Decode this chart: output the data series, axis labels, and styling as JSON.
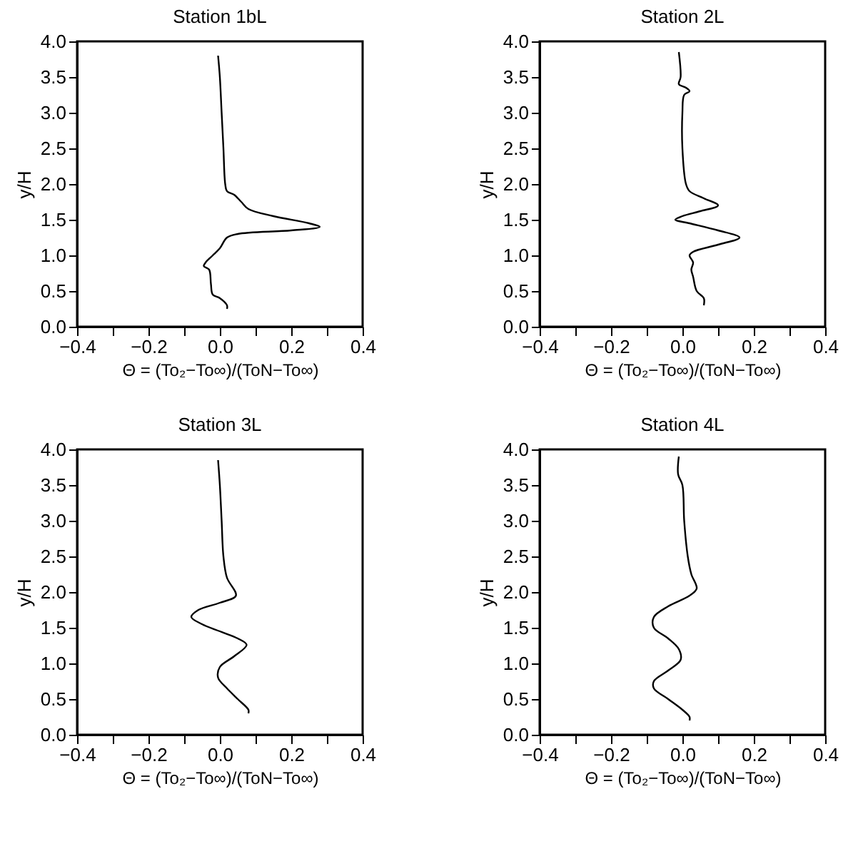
{
  "chart_data": [
    {
      "type": "line",
      "title": "Station 1bL",
      "xlabel": "Θ = (To₂−To∞)/(ToN−To∞)",
      "ylabel": "y/H",
      "xlim": [
        -0.4,
        0.4
      ],
      "ylim": [
        0,
        4
      ],
      "xticks": [
        {
          "value": -0.4,
          "label": "−0.4"
        },
        {
          "value": -0.3,
          "label": null
        },
        {
          "value": -0.2,
          "label": "−0.2"
        },
        {
          "value": -0.1,
          "label": null
        },
        {
          "value": 0,
          "label": "0.0"
        },
        {
          "value": 0.1,
          "label": null
        },
        {
          "value": 0.2,
          "label": "0.2"
        },
        {
          "value": 0.3,
          "label": null
        },
        {
          "value": 0.4,
          "label": "0.4"
        }
      ],
      "yticks": [
        {
          "value": 0,
          "label": "0.0"
        },
        {
          "value": 0.5,
          "label": "0.5"
        },
        {
          "value": 1,
          "label": "1.0"
        },
        {
          "value": 1.5,
          "label": "1.5"
        },
        {
          "value": 2,
          "label": "2.0"
        },
        {
          "value": 2.5,
          "label": "2.5"
        },
        {
          "value": 3,
          "label": "3.0"
        },
        {
          "value": 3.5,
          "label": "3.5"
        },
        {
          "value": 4,
          "label": "4.0"
        }
      ],
      "grid": false,
      "series": [
        {
          "color": "#000000",
          "x": [
            -0.005,
            0.0,
            0.005,
            0.01,
            0.015,
            0.02,
            0.04,
            0.06,
            0.08,
            0.15,
            0.25,
            0.28,
            0.2,
            0.05,
            0.02,
            0.0,
            -0.02,
            -0.04,
            -0.045,
            -0.03,
            -0.025,
            -0.02,
            0.0,
            0.02,
            0.02
          ],
          "values": [
            3.8,
            3.5,
            3.0,
            2.5,
            2.0,
            1.9,
            1.85,
            1.75,
            1.65,
            1.55,
            1.45,
            1.4,
            1.35,
            1.3,
            1.25,
            1.1,
            1.0,
            0.9,
            0.85,
            0.8,
            0.6,
            0.45,
            0.4,
            0.3,
            0.25
          ]
        }
      ]
    },
    {
      "type": "line",
      "title": "Station 2L",
      "xlabel": "Θ = (To₂−To∞)/(ToN−To∞)",
      "ylabel": "y/H",
      "xlim": [
        -0.4,
        0.4
      ],
      "ylim": [
        0,
        4
      ],
      "xticks": [
        {
          "value": -0.4,
          "label": "−0.4"
        },
        {
          "value": -0.3,
          "label": null
        },
        {
          "value": -0.2,
          "label": "−0.2"
        },
        {
          "value": -0.1,
          "label": null
        },
        {
          "value": 0,
          "label": "0.0"
        },
        {
          "value": 0.1,
          "label": null
        },
        {
          "value": 0.2,
          "label": "0.2"
        },
        {
          "value": 0.3,
          "label": null
        },
        {
          "value": 0.4,
          "label": "0.4"
        }
      ],
      "yticks": [
        {
          "value": 0,
          "label": "0.0"
        },
        {
          "value": 0.5,
          "label": "0.5"
        },
        {
          "value": 1,
          "label": "1.0"
        },
        {
          "value": 1.5,
          "label": "1.5"
        },
        {
          "value": 2,
          "label": "2.0"
        },
        {
          "value": 2.5,
          "label": "2.5"
        },
        {
          "value": 3,
          "label": "3.0"
        },
        {
          "value": 3.5,
          "label": "3.5"
        },
        {
          "value": 4,
          "label": "4.0"
        }
      ],
      "grid": false,
      "series": [
        {
          "color": "#000000",
          "x": [
            -0.01,
            -0.005,
            -0.01,
            0.01,
            0.02,
            0.005,
            0.0,
            0.0,
            0.01,
            0.02,
            0.06,
            0.1,
            0.05,
            0.0,
            -0.02,
            0.02,
            0.1,
            0.16,
            0.1,
            0.03,
            0.02,
            0.03,
            0.025,
            0.03,
            0.04,
            0.06,
            0.06
          ],
          "values": [
            3.85,
            3.5,
            3.4,
            3.35,
            3.3,
            3.25,
            3.0,
            2.5,
            2.0,
            1.9,
            1.8,
            1.7,
            1.62,
            1.55,
            1.5,
            1.45,
            1.35,
            1.25,
            1.15,
            1.05,
            1.0,
            0.9,
            0.8,
            0.7,
            0.5,
            0.4,
            0.3
          ]
        }
      ]
    },
    {
      "type": "line",
      "title": "Station 3L",
      "xlabel": "Θ = (To₂−To∞)/(ToN−To∞)",
      "ylabel": "y/H",
      "xlim": [
        -0.4,
        0.4
      ],
      "ylim": [
        0,
        4
      ],
      "xticks": [
        {
          "value": -0.4,
          "label": "−0.4"
        },
        {
          "value": -0.3,
          "label": null
        },
        {
          "value": -0.2,
          "label": "−0.2"
        },
        {
          "value": -0.1,
          "label": null
        },
        {
          "value": 0,
          "label": "0.0"
        },
        {
          "value": 0.1,
          "label": null
        },
        {
          "value": 0.2,
          "label": "0.2"
        },
        {
          "value": 0.3,
          "label": null
        },
        {
          "value": 0.4,
          "label": "0.4"
        }
      ],
      "yticks": [
        {
          "value": 0,
          "label": "0.0"
        },
        {
          "value": 0.5,
          "label": "0.5"
        },
        {
          "value": 1,
          "label": "1.0"
        },
        {
          "value": 1.5,
          "label": "1.5"
        },
        {
          "value": 2,
          "label": "2.0"
        },
        {
          "value": 2.5,
          "label": "2.5"
        },
        {
          "value": 3,
          "label": "3.0"
        },
        {
          "value": 3.5,
          "label": "3.5"
        },
        {
          "value": 4,
          "label": "4.0"
        }
      ],
      "grid": false,
      "series": [
        {
          "color": "#000000",
          "x": [
            -0.005,
            0.0,
            0.005,
            0.01,
            0.02,
            0.045,
            0.0,
            -0.06,
            -0.08,
            -0.05,
            0.0,
            0.05,
            0.075,
            0.04,
            0.0,
            -0.005,
            0.02,
            0.05,
            0.08,
            0.08
          ],
          "values": [
            3.85,
            3.5,
            3.0,
            2.5,
            2.2,
            1.95,
            1.85,
            1.75,
            1.65,
            1.55,
            1.45,
            1.35,
            1.26,
            1.1,
            0.95,
            0.8,
            0.65,
            0.5,
            0.35,
            0.3
          ]
        }
      ]
    },
    {
      "type": "line",
      "title": "Station 4L",
      "xlabel": "Θ = (To₂−To∞)/(ToN−To∞)",
      "ylabel": "y/H",
      "xlim": [
        -0.4,
        0.4
      ],
      "ylim": [
        0,
        4
      ],
      "xticks": [
        {
          "value": -0.4,
          "label": "−0.4"
        },
        {
          "value": -0.3,
          "label": null
        },
        {
          "value": -0.2,
          "label": "−0.2"
        },
        {
          "value": -0.1,
          "label": null
        },
        {
          "value": 0,
          "label": "0.0"
        },
        {
          "value": 0.1,
          "label": null
        },
        {
          "value": 0.2,
          "label": "0.2"
        },
        {
          "value": 0.3,
          "label": null
        },
        {
          "value": 0.4,
          "label": "0.4"
        }
      ],
      "yticks": [
        {
          "value": 0,
          "label": "0.0"
        },
        {
          "value": 0.5,
          "label": "0.5"
        },
        {
          "value": 1,
          "label": "1.0"
        },
        {
          "value": 1.5,
          "label": "1.5"
        },
        {
          "value": 2,
          "label": "2.0"
        },
        {
          "value": 2.5,
          "label": "2.5"
        },
        {
          "value": 3,
          "label": "3.0"
        },
        {
          "value": 3.5,
          "label": "3.5"
        },
        {
          "value": 4,
          "label": "4.0"
        }
      ],
      "grid": false,
      "series": [
        {
          "color": "#000000",
          "x": [
            -0.01,
            -0.012,
            0.0,
            0.005,
            0.015,
            0.025,
            0.04,
            0.02,
            -0.04,
            -0.08,
            -0.08,
            -0.04,
            -0.01,
            -0.005,
            -0.04,
            -0.08,
            -0.08,
            -0.04,
            0.0,
            0.02,
            0.02
          ],
          "values": [
            3.9,
            3.65,
            3.5,
            3.0,
            2.5,
            2.25,
            2.05,
            1.95,
            1.8,
            1.65,
            1.5,
            1.35,
            1.2,
            1.05,
            0.9,
            0.75,
            0.65,
            0.5,
            0.35,
            0.25,
            0.2
          ]
        }
      ]
    }
  ]
}
